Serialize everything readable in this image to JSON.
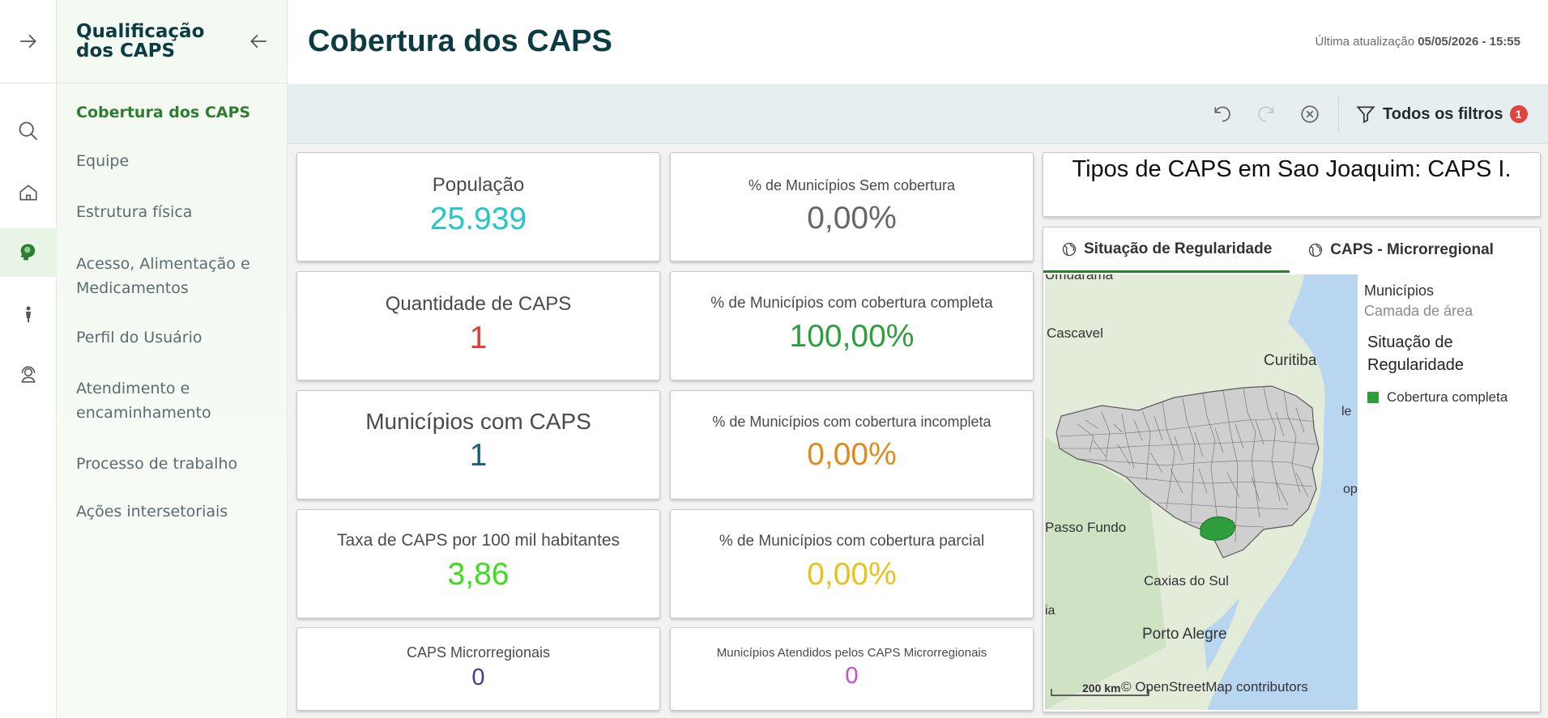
{
  "sidebar": {
    "title": "Qualificação dos CAPS",
    "items": [
      {
        "label": "Cobertura dos CAPS",
        "active": true
      },
      {
        "label": "Equipe"
      },
      {
        "label": "Estrutura física"
      },
      {
        "label": "Acesso, Alimentação e Medicamentos"
      },
      {
        "label": "Perfil do Usuário"
      },
      {
        "label": "Atendimento e encaminhamento"
      },
      {
        "label": "Processo de trabalho"
      },
      {
        "label": "Ações intersetoriais"
      }
    ]
  },
  "header": {
    "title": "Cobertura dos CAPS",
    "last_update_label": "Última atualização",
    "last_update_value": "05/05/2026 - 15:55"
  },
  "toolbar": {
    "filters_label": "Todos os filtros",
    "filters_count": "1"
  },
  "kpis": {
    "populacao": {
      "label": "População",
      "value": "25.939",
      "color": "#26c6c6"
    },
    "quantidade": {
      "label": "Quantidade de CAPS",
      "value": "1",
      "color": "#e53935"
    },
    "municipios": {
      "label": "Municípios com CAPS",
      "value": "1",
      "color": "#1a5f7a"
    },
    "taxa": {
      "label": "Taxa de CAPS por 100 mil habitantes",
      "value": "3,86",
      "color": "#3ddc1f"
    },
    "micro": {
      "label": "CAPS Microrregionais",
      "value": "0",
      "color": "#3a3f8f"
    },
    "sem_cobertura": {
      "label": "% de Municípios Sem cobertura",
      "value": "0,00%",
      "color": "#666666"
    },
    "completa": {
      "label": "% de Municípios com cobertura completa",
      "value": "100,00%",
      "color": "#2e9e3c"
    },
    "incompleta": {
      "label": "% de Municípios com cobertura incompleta",
      "value": "0,00%",
      "color": "#e08a1e"
    },
    "parcial": {
      "label": "% de Municípios com cobertura parcial",
      "value": "0,00%",
      "color": "#e8c21e"
    },
    "atendidos": {
      "label": "Municípios Atendidos pelos CAPS Microrregionais",
      "value": "0",
      "color": "#c44fd6"
    }
  },
  "types_card": {
    "text": "Tipos de CAPS em Sao Joaquim: CAPS I."
  },
  "map": {
    "tabs": [
      {
        "label": "Situação de Regularidade",
        "active": true
      },
      {
        "label": "CAPS - Microrregional"
      }
    ],
    "places": [
      "Umuarama",
      "Cascavel",
      "Curitiba",
      "Passo Fundo",
      "Caxias do Sul",
      "Porto Alegre"
    ],
    "coast_fragments": [
      "le",
      "op",
      "ia"
    ],
    "scale_label": "200 km",
    "attribution": "© OpenStreetMap contributors",
    "legend": {
      "title": "Municípios",
      "subtitle": "Camada de área",
      "heading": "Situação de Regularidade",
      "items": [
        {
          "label": "Cobertura completa",
          "color": "#2e9e3c"
        }
      ]
    }
  }
}
